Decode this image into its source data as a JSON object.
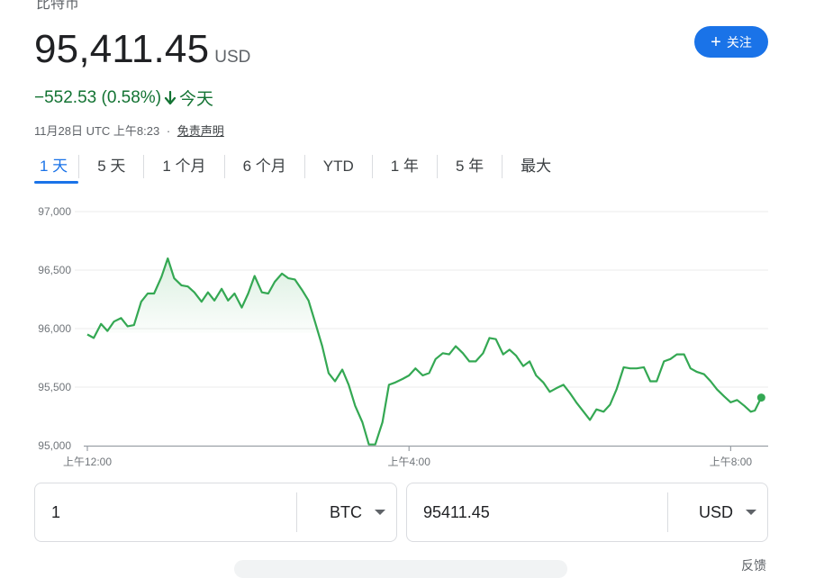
{
  "header": {
    "cut_title": "比特币"
  },
  "quote": {
    "price": "95,411.45",
    "currency": "USD",
    "change": "−552.53 (0.58%)",
    "direction": "down",
    "period": "今天",
    "timestamp": "11月28日 UTC 上午8:23",
    "separator": "·",
    "disclaimer": "免责声明"
  },
  "follow_button": {
    "label": "关注",
    "icon": "plus-icon"
  },
  "tabs": [
    {
      "label": "1 天",
      "selected": true
    },
    {
      "label": "5 天"
    },
    {
      "label": "1 个月"
    },
    {
      "label": "6 个月"
    },
    {
      "label": "YTD"
    },
    {
      "label": "1 年"
    },
    {
      "label": "5 年"
    },
    {
      "label": "最大"
    }
  ],
  "chart_data": {
    "type": "area",
    "y_ticks": [
      "97,000",
      "96,500",
      "96,000",
      "95,500",
      "95,000"
    ],
    "x_ticks": [
      "上午12:00",
      "上午4:00",
      "上午8:00"
    ],
    "ylim": [
      95000,
      97000
    ],
    "xlim_hours": [
      0,
      8.4
    ],
    "previous_close": 95964,
    "line_color": "#34a853",
    "grid": true,
    "series": [
      {
        "x": [
          0,
          0.08,
          0.17,
          0.25,
          0.33,
          0.42,
          0.5,
          0.58,
          0.67,
          0.75,
          0.83,
          0.92,
          1.0,
          1.08,
          1.17,
          1.25,
          1.33,
          1.42,
          1.5,
          1.58,
          1.67,
          1.75,
          1.83,
          1.92,
          2.0,
          2.08,
          2.17,
          2.25,
          2.33,
          2.42,
          2.5,
          2.58,
          2.67,
          2.75,
          2.83,
          2.92,
          3.0,
          3.08,
          3.17,
          3.25,
          3.33,
          3.42,
          3.5,
          3.58,
          3.67,
          3.75,
          3.83,
          3.92,
          4.0,
          4.08,
          4.17,
          4.25,
          4.33,
          4.42,
          4.5,
          4.58,
          4.67,
          4.75,
          4.83,
          4.92,
          5.0,
          5.08,
          5.17,
          5.25,
          5.33,
          5.42,
          5.5,
          5.58,
          5.67,
          5.75,
          5.83,
          5.92,
          6.0,
          6.08,
          6.17,
          6.25,
          6.33,
          6.42,
          6.5,
          6.58,
          6.67,
          6.75,
          6.83,
          6.92,
          7.0,
          7.08,
          7.17,
          7.25,
          7.33,
          7.42,
          7.5,
          7.58,
          7.67,
          7.75,
          7.83,
          7.92,
          8.0,
          8.08,
          8.17,
          8.25,
          8.3,
          8.38
        ],
        "y": [
          95950,
          95920,
          96040,
          95980,
          96060,
          96090,
          96020,
          96030,
          96230,
          96300,
          96300,
          96440,
          96600,
          96430,
          96370,
          96360,
          96310,
          96230,
          96310,
          96240,
          96340,
          96240,
          96300,
          96180,
          96300,
          96450,
          96310,
          96300,
          96400,
          96470,
          96430,
          96420,
          96330,
          96240,
          96060,
          95850,
          95620,
          95550,
          95650,
          95520,
          95340,
          95200,
          95010,
          95010,
          95200,
          95520,
          95540,
          95570,
          95600,
          95660,
          95600,
          95620,
          95740,
          95790,
          95780,
          95850,
          95790,
          95720,
          95720,
          95790,
          95920,
          95910,
          95780,
          95820,
          95770,
          95680,
          95720,
          95600,
          95540,
          95460,
          95490,
          95520,
          95450,
          95370,
          95290,
          95220,
          95310,
          95290,
          95350,
          95480,
          95670,
          95660,
          95660,
          95670,
          95550,
          95550,
          95720,
          95740,
          95780,
          95780,
          95660,
          95630,
          95610,
          95550,
          95480,
          95420,
          95370,
          95390,
          95340,
          95290,
          95300,
          95411
        ]
      }
    ]
  },
  "converter": {
    "left": {
      "value": "1",
      "unit": "BTC"
    },
    "right": {
      "value": "95411.45",
      "unit": "USD"
    }
  },
  "footer": {
    "feedback": "反馈"
  }
}
